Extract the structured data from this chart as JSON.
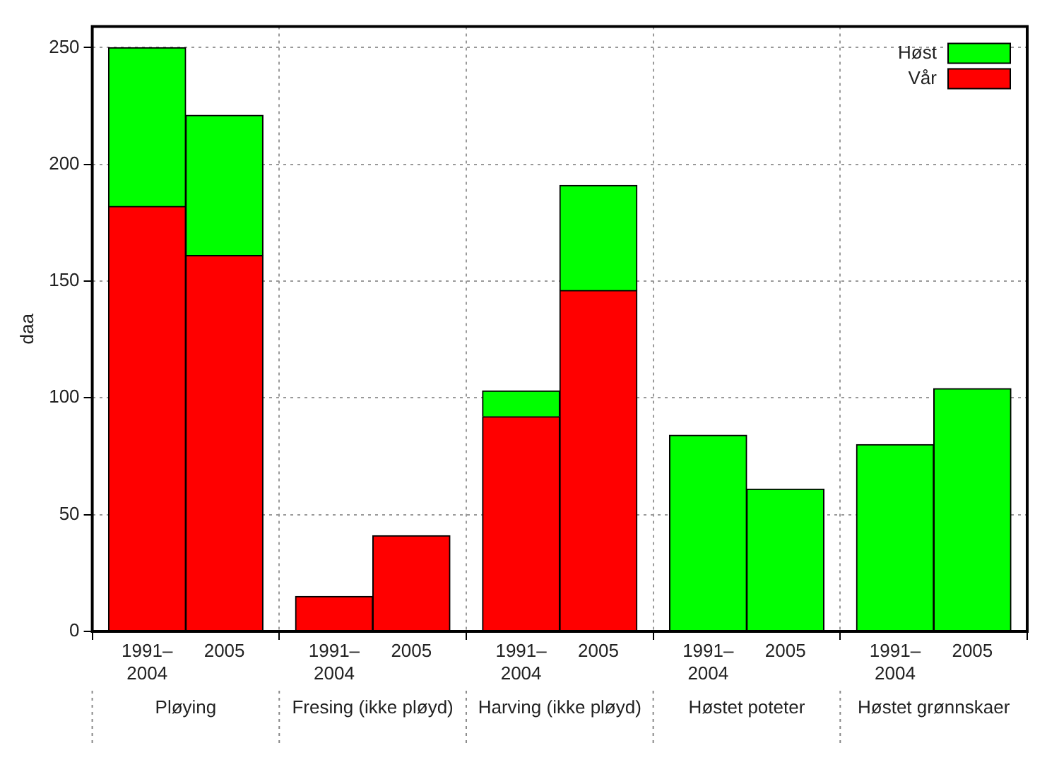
{
  "chart_data": {
    "type": "bar",
    "stacked": true,
    "ylabel": "daa",
    "categories": [
      "1991–2004",
      "2005",
      "1991–2004",
      "2005",
      "1991–2004",
      "2005",
      "1991–2004",
      "2005",
      "1991–2004",
      "2005"
    ],
    "annotations": [
      "Pløying",
      "Fresing (ikke pløyd)",
      "Harving (ikke pløyd)",
      "Høstet poteter",
      "Høstet grønnskaer"
    ],
    "series": [
      {
        "name": "Vår",
        "color": "#ff0000",
        "values": [
          182,
          161,
          15,
          41,
          92,
          146,
          null,
          null,
          null,
          null
        ]
      },
      {
        "name": "Høst",
        "color": "#00ff00",
        "values": [
          68,
          60,
          null,
          null,
          11,
          45,
          84,
          61,
          80,
          104
        ]
      }
    ],
    "ylim": [
      0,
      259
    ],
    "yticks": [
      0,
      50,
      100,
      150,
      200,
      250
    ],
    "grid": true,
    "legend": "top right"
  }
}
